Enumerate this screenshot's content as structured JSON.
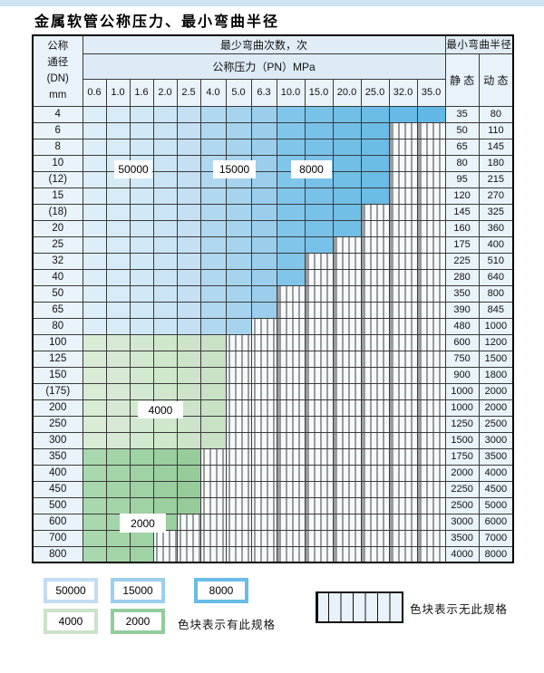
{
  "page": {
    "title": "金属软管公称压力、最小弯曲半径"
  },
  "table": {
    "dn_header_lines": [
      "公称",
      "通径",
      "(DN)",
      "mm"
    ],
    "bend_times_header": "最少弯曲次数，次",
    "pressure_header": "公称压力（PN）MPa",
    "pressure_columns": [
      "0.6",
      "1.0",
      "1.6",
      "2.0",
      "2.5",
      "4.0",
      "5.0",
      "6.3",
      "10.0",
      "15.0",
      "20.0",
      "25.0",
      "32.0",
      "35.0"
    ],
    "radius_header": "最小弯曲半径",
    "static_header": "静 态",
    "dynamic_header": "动 态",
    "rows": [
      {
        "dn": "4",
        "colored": 14,
        "zone": "b",
        "static": "35",
        "dynamic": "80"
      },
      {
        "dn": "6",
        "colored": 12,
        "zone": "b",
        "static": "50",
        "dynamic": "110"
      },
      {
        "dn": "8",
        "colored": 12,
        "zone": "b",
        "static": "65",
        "dynamic": "145"
      },
      {
        "dn": "10",
        "colored": 12,
        "zone": "b",
        "static": "80",
        "dynamic": "180"
      },
      {
        "dn": "(12)",
        "colored": 12,
        "zone": "b",
        "static": "95",
        "dynamic": "215"
      },
      {
        "dn": "15",
        "colored": 12,
        "zone": "b",
        "static": "120",
        "dynamic": "270"
      },
      {
        "dn": "(18)",
        "colored": 11,
        "zone": "b",
        "static": "145",
        "dynamic": "325"
      },
      {
        "dn": "20",
        "colored": 11,
        "zone": "b",
        "static": "160",
        "dynamic": "360"
      },
      {
        "dn": "25",
        "colored": 10,
        "zone": "b",
        "static": "175",
        "dynamic": "400"
      },
      {
        "dn": "32",
        "colored": 9,
        "zone": "b",
        "static": "225",
        "dynamic": "510"
      },
      {
        "dn": "40",
        "colored": 9,
        "zone": "b",
        "static": "280",
        "dynamic": "640"
      },
      {
        "dn": "50",
        "colored": 8,
        "zone": "b",
        "static": "350",
        "dynamic": "800"
      },
      {
        "dn": "65",
        "colored": 8,
        "zone": "b",
        "static": "390",
        "dynamic": "845"
      },
      {
        "dn": "80",
        "colored": 7,
        "zone": "b",
        "static": "480",
        "dynamic": "1000"
      },
      {
        "dn": "100",
        "colored": 6,
        "zone": "gl",
        "static": "600",
        "dynamic": "1200"
      },
      {
        "dn": "125",
        "colored": 6,
        "zone": "gl",
        "static": "750",
        "dynamic": "1500"
      },
      {
        "dn": "150",
        "colored": 6,
        "zone": "gl",
        "static": "900",
        "dynamic": "1800"
      },
      {
        "dn": "(175)",
        "colored": 6,
        "zone": "gl",
        "static": "1000",
        "dynamic": "2000"
      },
      {
        "dn": "200",
        "colored": 6,
        "zone": "gl",
        "static": "1000",
        "dynamic": "2000"
      },
      {
        "dn": "250",
        "colored": 6,
        "zone": "gl",
        "static": "1250",
        "dynamic": "2500"
      },
      {
        "dn": "300",
        "colored": 6,
        "zone": "gl",
        "static": "1500",
        "dynamic": "3000"
      },
      {
        "dn": "350",
        "colored": 5,
        "zone": "gd",
        "static": "1750",
        "dynamic": "3500"
      },
      {
        "dn": "400",
        "colored": 5,
        "zone": "gd",
        "static": "2000",
        "dynamic": "4000"
      },
      {
        "dn": "450",
        "colored": 5,
        "zone": "gd",
        "static": "2250",
        "dynamic": "4500"
      },
      {
        "dn": "500",
        "colored": 5,
        "zone": "gd",
        "static": "2500",
        "dynamic": "5000"
      },
      {
        "dn": "600",
        "colored": 4,
        "zone": "gd",
        "static": "3000",
        "dynamic": "6000"
      },
      {
        "dn": "700",
        "colored": 3,
        "zone": "gd",
        "static": "3500",
        "dynamic": "7000"
      },
      {
        "dn": "800",
        "colored": 3,
        "zone": "gd",
        "static": "4000",
        "dynamic": "8000"
      }
    ]
  },
  "zone_labels": {
    "z50000": "50000",
    "z15000": "15000",
    "z8000": "8000",
    "z4000": "4000",
    "z2000": "2000"
  },
  "legend": {
    "items": [
      {
        "label": "50000",
        "color": "#c2ddf2"
      },
      {
        "label": "15000",
        "color": "#9dcfed"
      },
      {
        "label": "8000",
        "color": "#68bce6"
      },
      {
        "label": "4000",
        "color": "#cbe3c8"
      },
      {
        "label": "2000",
        "color": "#92cc9c"
      }
    ],
    "has_spec_text": "色块表示有此规格",
    "no_spec_text": "色块表示无此规格"
  },
  "colors": {
    "blue_cells": [
      "#dceef9",
      "#d7ebf7",
      "#d1e8f6",
      "#cbe4f4",
      "#c4e0f2",
      "#b0d8f0",
      "#a6d3ee",
      "#9bceec",
      "#7fc6ea",
      "#78c2e9",
      "#71bfe7",
      "#6bbce6",
      "#66bae5",
      "#62b8e4"
    ],
    "green_light_cells": [
      "#d9ecd6",
      "#d6ead3",
      "#d3e8d0",
      "#d0e6cd",
      "#cde4ca",
      "#c9e2c6"
    ],
    "green_dark_cells": [
      "#a9d8ae",
      "#a4d5a9",
      "#9fd2a4",
      "#9acf9f",
      "#95cc9a",
      "#90c995"
    ],
    "hatch_bg": "#f6fafd"
  }
}
